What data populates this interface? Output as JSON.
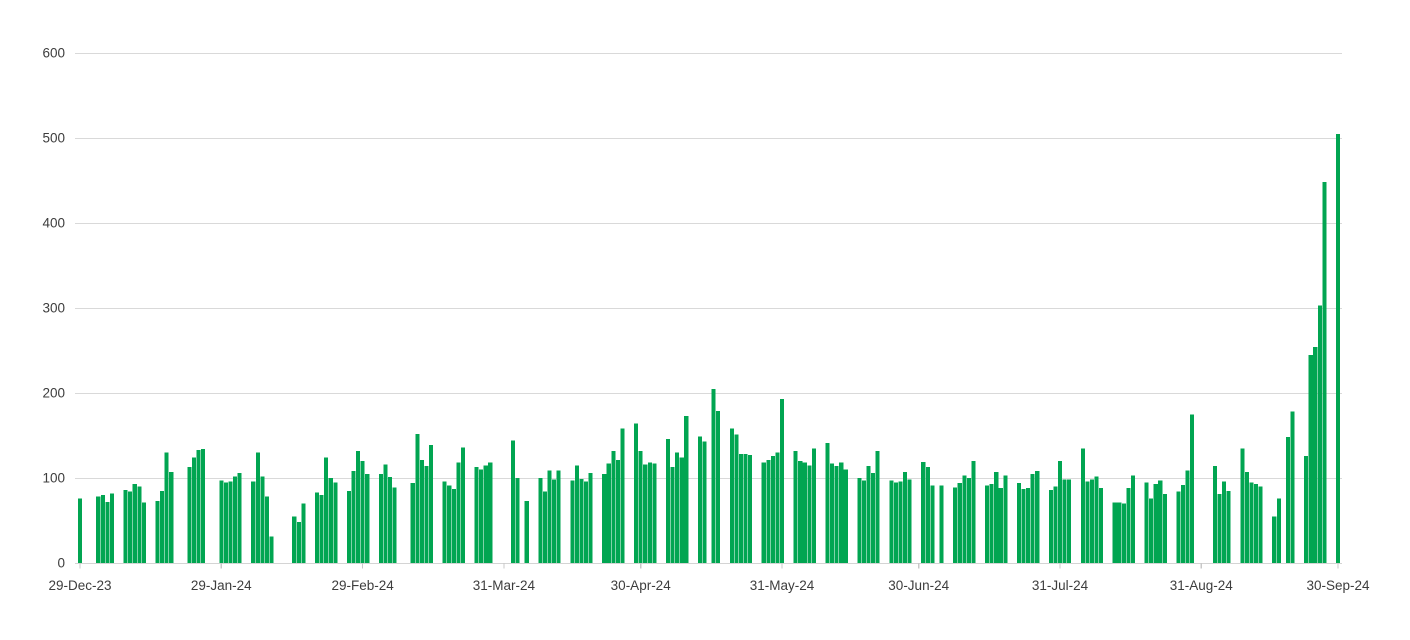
{
  "chart_data": {
    "type": "bar",
    "title": "",
    "xlabel": "",
    "ylabel": "",
    "legend": "none",
    "grid": true,
    "ylim": [
      0,
      600
    ],
    "y_ticks": [
      0,
      100,
      200,
      300,
      400,
      500,
      600
    ],
    "y_tick_labels": [
      "0",
      "100",
      "200",
      "300",
      "400",
      "500",
      "600"
    ],
    "x_ticks": [
      {
        "date": "2023-12-29",
        "label": "29-Dec-23"
      },
      {
        "date": "2024-01-29",
        "label": "29-Jan-24"
      },
      {
        "date": "2024-02-29",
        "label": "29-Feb-24"
      },
      {
        "date": "2024-03-31",
        "label": "31-Mar-24"
      },
      {
        "date": "2024-04-30",
        "label": "30-Apr-24"
      },
      {
        "date": "2024-05-31",
        "label": "31-May-24"
      },
      {
        "date": "2024-06-30",
        "label": "30-Jun-24"
      },
      {
        "date": "2024-07-31",
        "label": "31-Jul-24"
      },
      {
        "date": "2024-08-31",
        "label": "31-Aug-24"
      },
      {
        "date": "2024-09-30",
        "label": "30-Sep-24"
      }
    ],
    "x_range_dates": [
      "2023-12-29",
      "2024-09-30"
    ],
    "colors": {
      "bar": "#01a551",
      "gridline": "#d9d9d9",
      "axis_line": "#d4d4d4",
      "tick_mark": "#c8c8c8",
      "label_text": "#3d3d3d",
      "background": "#ffffff"
    },
    "points": [
      [
        "2023-12-29",
        76
      ],
      [
        "2024-01-02",
        78
      ],
      [
        "2024-01-03",
        80
      ],
      [
        "2024-01-04",
        72
      ],
      [
        "2024-01-05",
        82
      ],
      [
        "2024-01-08",
        86
      ],
      [
        "2024-01-09",
        84
      ],
      [
        "2024-01-10",
        93
      ],
      [
        "2024-01-11",
        90
      ],
      [
        "2024-01-12",
        71
      ],
      [
        "2024-01-15",
        73
      ],
      [
        "2024-01-16",
        85
      ],
      [
        "2024-01-17",
        130
      ],
      [
        "2024-01-18",
        107
      ],
      [
        "2024-01-22",
        113
      ],
      [
        "2024-01-23",
        124
      ],
      [
        "2024-01-24",
        133
      ],
      [
        "2024-01-25",
        134
      ],
      [
        "2024-01-29",
        97
      ],
      [
        "2024-01-30",
        95
      ],
      [
        "2024-01-31",
        96
      ],
      [
        "2024-02-01",
        102
      ],
      [
        "2024-02-02",
        106
      ],
      [
        "2024-02-05",
        96
      ],
      [
        "2024-02-06",
        130
      ],
      [
        "2024-02-07",
        102
      ],
      [
        "2024-02-08",
        78
      ],
      [
        "2024-02-09",
        31
      ],
      [
        "2024-02-14",
        55
      ],
      [
        "2024-02-15",
        48
      ],
      [
        "2024-02-16",
        70
      ],
      [
        "2024-02-19",
        83
      ],
      [
        "2024-02-20",
        80
      ],
      [
        "2024-02-21",
        124
      ],
      [
        "2024-02-22",
        100
      ],
      [
        "2024-02-23",
        95
      ],
      [
        "2024-02-26",
        85
      ],
      [
        "2024-02-27",
        108
      ],
      [
        "2024-02-28",
        132
      ],
      [
        "2024-02-29",
        120
      ],
      [
        "2024-03-01",
        105
      ],
      [
        "2024-03-04",
        105
      ],
      [
        "2024-03-05",
        116
      ],
      [
        "2024-03-06",
        101
      ],
      [
        "2024-03-07",
        89
      ],
      [
        "2024-03-11",
        94
      ],
      [
        "2024-03-12",
        152
      ],
      [
        "2024-03-13",
        121
      ],
      [
        "2024-03-14",
        114
      ],
      [
        "2024-03-15",
        139
      ],
      [
        "2024-03-18",
        96
      ],
      [
        "2024-03-19",
        91
      ],
      [
        "2024-03-20",
        87
      ],
      [
        "2024-03-21",
        118
      ],
      [
        "2024-03-22",
        136
      ],
      [
        "2024-03-25",
        113
      ],
      [
        "2024-03-26",
        110
      ],
      [
        "2024-03-27",
        115
      ],
      [
        "2024-03-28",
        118
      ],
      [
        "2024-04-02",
        144
      ],
      [
        "2024-04-03",
        100
      ],
      [
        "2024-04-05",
        73
      ],
      [
        "2024-04-08",
        100
      ],
      [
        "2024-04-09",
        84
      ],
      [
        "2024-04-10",
        109
      ],
      [
        "2024-04-11",
        98
      ],
      [
        "2024-04-12",
        109
      ],
      [
        "2024-04-15",
        97
      ],
      [
        "2024-04-16",
        115
      ],
      [
        "2024-04-17",
        99
      ],
      [
        "2024-04-18",
        96
      ],
      [
        "2024-04-19",
        106
      ],
      [
        "2024-04-22",
        105
      ],
      [
        "2024-04-23",
        117
      ],
      [
        "2024-04-24",
        132
      ],
      [
        "2024-04-25",
        121
      ],
      [
        "2024-04-26",
        158
      ],
      [
        "2024-04-29",
        164
      ],
      [
        "2024-04-30",
        132
      ],
      [
        "2024-05-01",
        116
      ],
      [
        "2024-05-02",
        118
      ],
      [
        "2024-05-03",
        117
      ],
      [
        "2024-05-06",
        146
      ],
      [
        "2024-05-07",
        113
      ],
      [
        "2024-05-08",
        130
      ],
      [
        "2024-05-09",
        124
      ],
      [
        "2024-05-10",
        173
      ],
      [
        "2024-05-13",
        149
      ],
      [
        "2024-05-14",
        143
      ],
      [
        "2024-05-16",
        205
      ],
      [
        "2024-05-17",
        179
      ],
      [
        "2024-05-20",
        158
      ],
      [
        "2024-05-21",
        151
      ],
      [
        "2024-05-22",
        128
      ],
      [
        "2024-05-23",
        128
      ],
      [
        "2024-05-24",
        127
      ],
      [
        "2024-05-27",
        118
      ],
      [
        "2024-05-28",
        121
      ],
      [
        "2024-05-29",
        126
      ],
      [
        "2024-05-30",
        130
      ],
      [
        "2024-05-31",
        193
      ],
      [
        "2024-06-03",
        132
      ],
      [
        "2024-06-04",
        120
      ],
      [
        "2024-06-05",
        118
      ],
      [
        "2024-06-06",
        115
      ],
      [
        "2024-06-07",
        135
      ],
      [
        "2024-06-10",
        141
      ],
      [
        "2024-06-11",
        117
      ],
      [
        "2024-06-12",
        114
      ],
      [
        "2024-06-13",
        118
      ],
      [
        "2024-06-14",
        110
      ],
      [
        "2024-06-17",
        100
      ],
      [
        "2024-06-18",
        97
      ],
      [
        "2024-06-19",
        114
      ],
      [
        "2024-06-20",
        106
      ],
      [
        "2024-06-21",
        132
      ],
      [
        "2024-06-24",
        97
      ],
      [
        "2024-06-25",
        95
      ],
      [
        "2024-06-26",
        96
      ],
      [
        "2024-06-27",
        107
      ],
      [
        "2024-06-28",
        98
      ],
      [
        "2024-07-01",
        119
      ],
      [
        "2024-07-02",
        113
      ],
      [
        "2024-07-03",
        91
      ],
      [
        "2024-07-05",
        91
      ],
      [
        "2024-07-08",
        89
      ],
      [
        "2024-07-09",
        94
      ],
      [
        "2024-07-10",
        103
      ],
      [
        "2024-07-11",
        100
      ],
      [
        "2024-07-12",
        120
      ],
      [
        "2024-07-15",
        91
      ],
      [
        "2024-07-16",
        93
      ],
      [
        "2024-07-17",
        107
      ],
      [
        "2024-07-18",
        88
      ],
      [
        "2024-07-19",
        103
      ],
      [
        "2024-07-22",
        94
      ],
      [
        "2024-07-23",
        87
      ],
      [
        "2024-07-24",
        88
      ],
      [
        "2024-07-25",
        105
      ],
      [
        "2024-07-26",
        108
      ],
      [
        "2024-07-29",
        86
      ],
      [
        "2024-07-30",
        90
      ],
      [
        "2024-07-31",
        120
      ],
      [
        "2024-08-01",
        98
      ],
      [
        "2024-08-02",
        98
      ],
      [
        "2024-08-05",
        135
      ],
      [
        "2024-08-06",
        96
      ],
      [
        "2024-08-07",
        98
      ],
      [
        "2024-08-08",
        102
      ],
      [
        "2024-08-09",
        88
      ],
      [
        "2024-08-12",
        71
      ],
      [
        "2024-08-13",
        71
      ],
      [
        "2024-08-14",
        70
      ],
      [
        "2024-08-15",
        88
      ],
      [
        "2024-08-16",
        103
      ],
      [
        "2024-08-19",
        95
      ],
      [
        "2024-08-20",
        76
      ],
      [
        "2024-08-21",
        93
      ],
      [
        "2024-08-22",
        97
      ],
      [
        "2024-08-23",
        81
      ],
      [
        "2024-08-26",
        84
      ],
      [
        "2024-08-27",
        92
      ],
      [
        "2024-08-28",
        109
      ],
      [
        "2024-08-29",
        175
      ],
      [
        "2024-09-03",
        114
      ],
      [
        "2024-09-04",
        81
      ],
      [
        "2024-09-05",
        96
      ],
      [
        "2024-09-06",
        85
      ],
      [
        "2024-09-09",
        135
      ],
      [
        "2024-09-10",
        107
      ],
      [
        "2024-09-11",
        95
      ],
      [
        "2024-09-12",
        93
      ],
      [
        "2024-09-13",
        90
      ],
      [
        "2024-09-16",
        55
      ],
      [
        "2024-09-17",
        76
      ],
      [
        "2024-09-19",
        148
      ],
      [
        "2024-09-20",
        178
      ],
      [
        "2024-09-23",
        126
      ],
      [
        "2024-09-24",
        245
      ],
      [
        "2024-09-25",
        254
      ],
      [
        "2024-09-26",
        303
      ],
      [
        "2024-09-27",
        448
      ],
      [
        "2024-09-30",
        505
      ]
    ]
  }
}
